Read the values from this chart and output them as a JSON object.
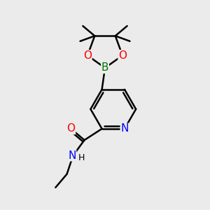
{
  "background_color": "#ebebeb",
  "line_color": "#000000",
  "bond_width": 1.8,
  "atom_colors": {
    "N": "#0000ff",
    "O": "#ff0000",
    "B": "#007700",
    "C": "#000000",
    "H": "#000000"
  },
  "font_size": 10,
  "figsize": [
    3.0,
    3.0
  ],
  "dpi": 100
}
